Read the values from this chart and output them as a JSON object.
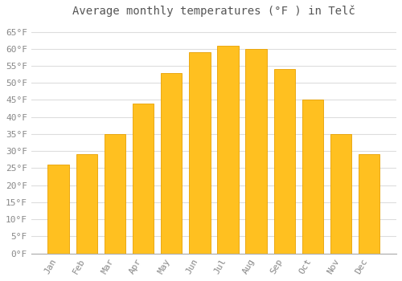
{
  "title": "Average monthly temperatures (°F ) in Telč",
  "months": [
    "Jan",
    "Feb",
    "Mar",
    "Apr",
    "May",
    "Jun",
    "Jul",
    "Aug",
    "Sep",
    "Oct",
    "Nov",
    "Dec"
  ],
  "values": [
    26,
    29,
    35,
    44,
    53,
    59,
    61,
    60,
    54,
    45,
    35,
    29
  ],
  "bar_color": "#FFC020",
  "bar_edge_color": "#E8A000",
  "background_color": "#FFFFFF",
  "plot_bg_color": "#FFFFFF",
  "grid_color": "#DDDDDD",
  "text_color": "#888888",
  "title_color": "#555555",
  "ylim": [
    0,
    68
  ],
  "yticks": [
    0,
    5,
    10,
    15,
    20,
    25,
    30,
    35,
    40,
    45,
    50,
    55,
    60,
    65
  ],
  "ylabel_suffix": "°F",
  "title_fontsize": 10,
  "tick_fontsize": 8,
  "font_family": "monospace",
  "bar_width": 0.75
}
